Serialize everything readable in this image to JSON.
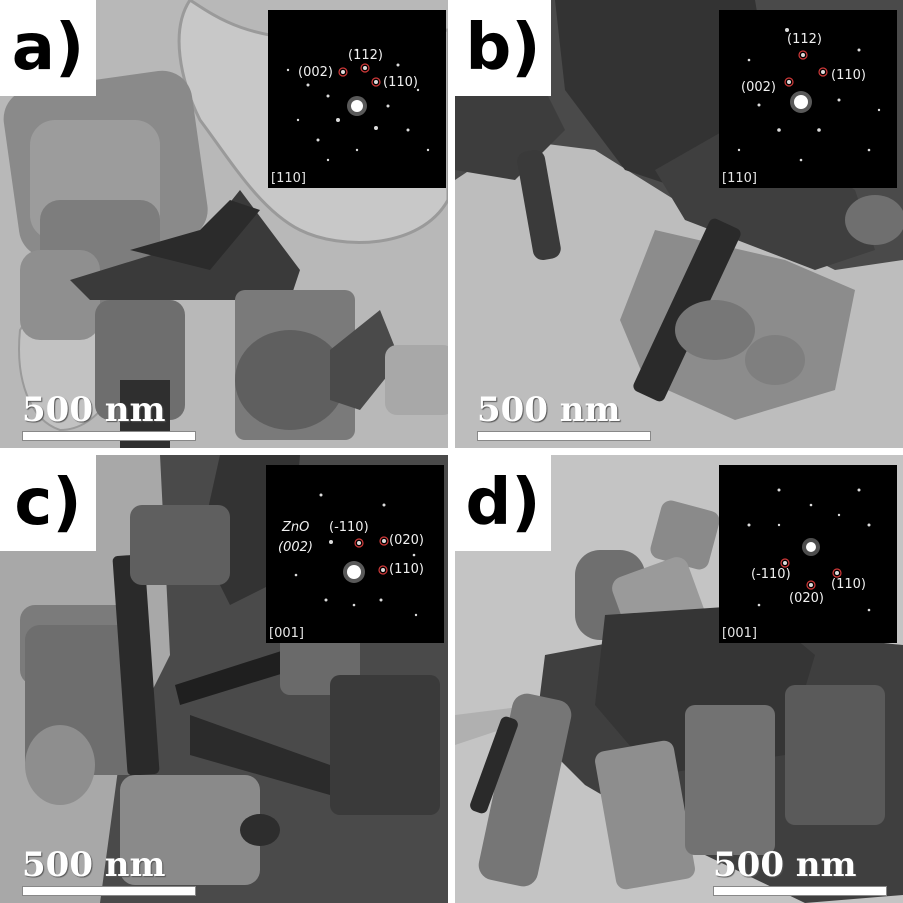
{
  "panels": [
    {
      "letter": "a)",
      "zone_axis": "[110]",
      "spots": [
        "(002)",
        "(112)",
        "(110)"
      ],
      "scale_label": "500 nm"
    },
    {
      "letter": "b)",
      "zone_axis": "[110]",
      "spots": [
        "(112)",
        "(002)",
        "(110)"
      ],
      "scale_label": "500 nm"
    },
    {
      "letter": "c)",
      "zone_axis": "[001]",
      "zno_line1": "ZnO",
      "zno_line2": "(002)",
      "spots": [
        "(-110)",
        "(020)",
        "(110)"
      ],
      "scale_label": "500 nm"
    },
    {
      "letter": "d)",
      "zone_axis": "[001]",
      "spots": [
        "(-110)",
        "(020)",
        "(110)"
      ],
      "scale_label": "500 nm"
    }
  ],
  "colors": {
    "background_gray": "#b4b4b4",
    "particle_dark": "#3a3a3a",
    "spot_marker": "#d23a3a"
  }
}
